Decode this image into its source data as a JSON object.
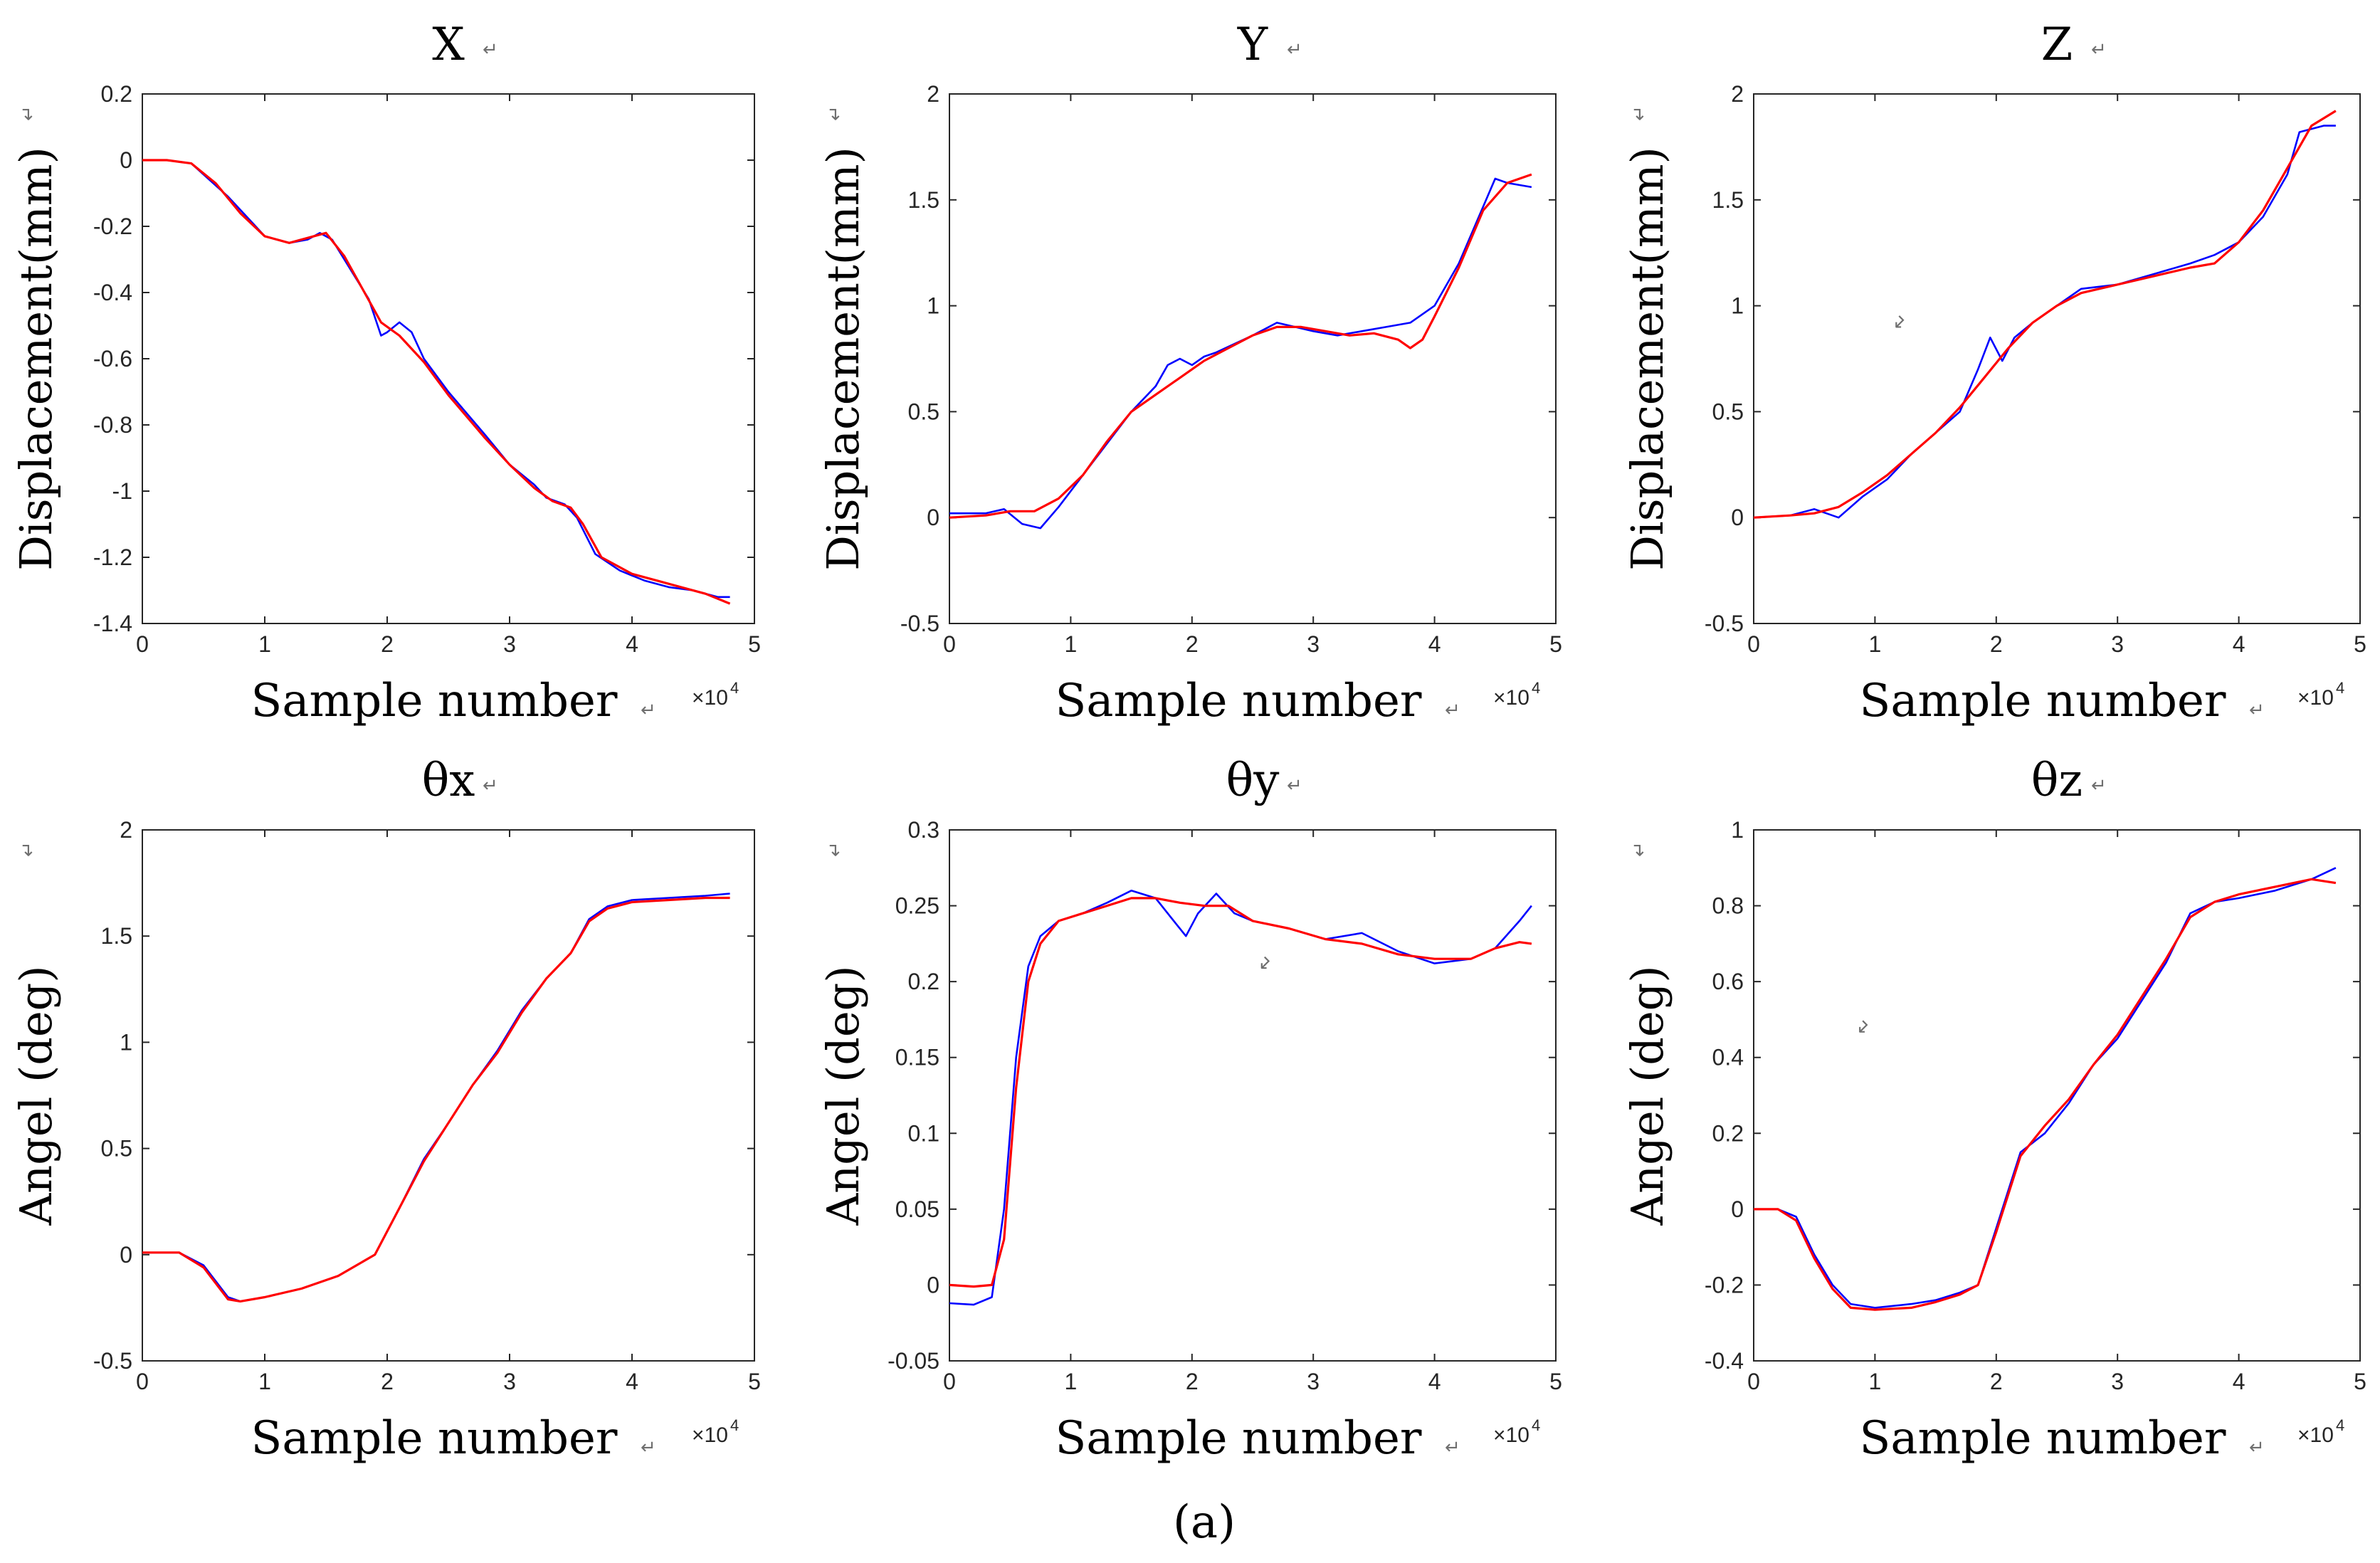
{
  "caption": "(a)",
  "return_mark": "↵",
  "colors": {
    "series1": "#0000ff",
    "series2": "#ff0000",
    "axis": "#262626"
  },
  "chart_data": [
    {
      "type": "line",
      "title": "X",
      "xlabel": "Sample number",
      "ylabel": "Displacement(mm)",
      "x_multiplier": "×10",
      "x_multiplier_exp": "4",
      "xlim": [
        0,
        5
      ],
      "ylim": [
        -1.4,
        0.2
      ],
      "xticks": [
        0,
        1,
        2,
        3,
        4,
        5
      ],
      "yticks": [
        0.2,
        0,
        -0.2,
        -0.4,
        -0.6,
        -0.8,
        -1,
        -1.2,
        -1.4
      ],
      "series": [
        {
          "name": "blue",
          "color": "#0000ff",
          "x": [
            0,
            0.2,
            0.4,
            0.55,
            0.7,
            0.9,
            1.0,
            1.2,
            1.35,
            1.45,
            1.55,
            1.7,
            1.85,
            1.95,
            2.0,
            2.1,
            2.2,
            2.3,
            2.5,
            2.8,
            3.0,
            3.2,
            3.3,
            3.45,
            3.55,
            3.7,
            3.9,
            4.1,
            4.3,
            4.5,
            4.7,
            4.8
          ],
          "y": [
            0,
            0,
            -0.01,
            -0.06,
            -0.11,
            -0.19,
            -0.23,
            -0.25,
            -0.24,
            -0.22,
            -0.24,
            -0.33,
            -0.42,
            -0.53,
            -0.52,
            -0.49,
            -0.52,
            -0.6,
            -0.7,
            -0.83,
            -0.92,
            -0.98,
            -1.02,
            -1.04,
            -1.08,
            -1.19,
            -1.24,
            -1.27,
            -1.29,
            -1.3,
            -1.32,
            -1.32
          ]
        },
        {
          "name": "red",
          "color": "#ff0000",
          "x": [
            0,
            0.2,
            0.4,
            0.6,
            0.8,
            1.0,
            1.2,
            1.4,
            1.5,
            1.65,
            1.8,
            1.95,
            2.1,
            2.3,
            2.5,
            2.8,
            3.0,
            3.2,
            3.35,
            3.5,
            3.6,
            3.75,
            4.0,
            4.2,
            4.4,
            4.6,
            4.8
          ],
          "y": [
            0,
            0,
            -0.01,
            -0.07,
            -0.16,
            -0.23,
            -0.25,
            -0.23,
            -0.22,
            -0.29,
            -0.39,
            -0.49,
            -0.53,
            -0.61,
            -0.71,
            -0.84,
            -0.92,
            -0.99,
            -1.03,
            -1.05,
            -1.1,
            -1.2,
            -1.25,
            -1.27,
            -1.29,
            -1.31,
            -1.34
          ]
        }
      ]
    },
    {
      "type": "line",
      "title": "Y",
      "xlabel": "Sample number",
      "ylabel": "Displacement(mm)",
      "x_multiplier": "×10",
      "x_multiplier_exp": "4",
      "xlim": [
        0,
        5
      ],
      "ylim": [
        -0.5,
        2
      ],
      "xticks": [
        0,
        1,
        2,
        3,
        4,
        5
      ],
      "yticks": [
        2,
        1.5,
        1,
        0.5,
        0,
        -0.5
      ],
      "series": [
        {
          "name": "blue",
          "color": "#0000ff",
          "x": [
            0,
            0.3,
            0.45,
            0.6,
            0.75,
            0.9,
            1.1,
            1.3,
            1.5,
            1.7,
            1.8,
            1.9,
            2.0,
            2.1,
            2.2,
            2.35,
            2.5,
            2.7,
            3.0,
            3.2,
            3.4,
            3.6,
            3.8,
            4.0,
            4.2,
            4.35,
            4.5,
            4.6,
            4.8
          ],
          "y": [
            0.02,
            0.02,
            0.04,
            -0.03,
            -0.05,
            0.05,
            0.2,
            0.35,
            0.5,
            0.62,
            0.72,
            0.75,
            0.72,
            0.76,
            0.78,
            0.82,
            0.86,
            0.92,
            0.88,
            0.86,
            0.88,
            0.9,
            0.92,
            1.0,
            1.2,
            1.4,
            1.6,
            1.58,
            1.56
          ]
        },
        {
          "name": "red",
          "color": "#ff0000",
          "x": [
            0,
            0.3,
            0.5,
            0.7,
            0.9,
            1.1,
            1.3,
            1.5,
            1.7,
            1.9,
            2.1,
            2.3,
            2.5,
            2.7,
            2.9,
            3.1,
            3.3,
            3.5,
            3.7,
            3.8,
            3.9,
            4.0,
            4.2,
            4.4,
            4.6,
            4.8
          ],
          "y": [
            0.0,
            0.01,
            0.03,
            0.03,
            0.09,
            0.2,
            0.36,
            0.5,
            0.58,
            0.66,
            0.74,
            0.8,
            0.86,
            0.9,
            0.9,
            0.88,
            0.86,
            0.87,
            0.84,
            0.8,
            0.84,
            0.95,
            1.18,
            1.45,
            1.58,
            1.62
          ]
        }
      ]
    },
    {
      "type": "line",
      "title": "Z",
      "xlabel": "Sample number",
      "ylabel": "Displacement(mm)",
      "x_multiplier": "×10",
      "x_multiplier_exp": "4",
      "xlim": [
        0,
        5
      ],
      "ylim": [
        -0.5,
        2
      ],
      "xticks": [
        0,
        1,
        2,
        3,
        4,
        5
      ],
      "yticks": [
        2,
        1.5,
        1,
        0.5,
        0,
        -0.5
      ],
      "series": [
        {
          "name": "blue",
          "color": "#0000ff",
          "x": [
            0,
            0.3,
            0.5,
            0.7,
            0.9,
            1.1,
            1.3,
            1.5,
            1.7,
            1.85,
            1.95,
            2.05,
            2.15,
            2.3,
            2.5,
            2.7,
            3.0,
            3.3,
            3.6,
            3.8,
            4.0,
            4.2,
            4.4,
            4.5,
            4.7,
            4.8
          ],
          "y": [
            0.0,
            0.01,
            0.04,
            0.0,
            0.1,
            0.18,
            0.3,
            0.4,
            0.5,
            0.7,
            0.85,
            0.74,
            0.85,
            0.92,
            1.0,
            1.08,
            1.1,
            1.15,
            1.2,
            1.24,
            1.3,
            1.42,
            1.62,
            1.82,
            1.85,
            1.85
          ]
        },
        {
          "name": "red",
          "color": "#ff0000",
          "x": [
            0,
            0.3,
            0.5,
            0.7,
            0.9,
            1.1,
            1.3,
            1.5,
            1.7,
            1.9,
            2.1,
            2.3,
            2.5,
            2.7,
            3.0,
            3.3,
            3.6,
            3.8,
            4.0,
            4.2,
            4.4,
            4.6,
            4.8
          ],
          "y": [
            0.0,
            0.01,
            0.02,
            0.05,
            0.12,
            0.2,
            0.3,
            0.4,
            0.52,
            0.66,
            0.8,
            0.92,
            1.0,
            1.06,
            1.1,
            1.14,
            1.18,
            1.2,
            1.3,
            1.45,
            1.65,
            1.85,
            1.92
          ]
        }
      ]
    },
    {
      "type": "line",
      "title": "θx",
      "xlabel": "Sample number",
      "ylabel": "Angel (deg)",
      "x_multiplier": "×10",
      "x_multiplier_exp": "4",
      "xlim": [
        0,
        5
      ],
      "ylim": [
        -0.5,
        2
      ],
      "xticks": [
        0,
        1,
        2,
        3,
        4,
        5
      ],
      "yticks": [
        2,
        1.5,
        1,
        0.5,
        0,
        -0.5
      ],
      "series": [
        {
          "name": "blue",
          "color": "#0000ff",
          "x": [
            0,
            0.3,
            0.5,
            0.7,
            0.8,
            1.0,
            1.3,
            1.6,
            1.9,
            2.1,
            2.3,
            2.5,
            2.7,
            2.9,
            3.1,
            3.3,
            3.5,
            3.65,
            3.8,
            4.0,
            4.3,
            4.6,
            4.8
          ],
          "y": [
            0.01,
            0.01,
            -0.05,
            -0.2,
            -0.22,
            -0.2,
            -0.16,
            -0.1,
            0.0,
            0.22,
            0.45,
            0.62,
            0.8,
            0.96,
            1.15,
            1.3,
            1.42,
            1.58,
            1.64,
            1.67,
            1.68,
            1.69,
            1.7
          ]
        },
        {
          "name": "red",
          "color": "#ff0000",
          "x": [
            0,
            0.3,
            0.5,
            0.7,
            0.8,
            1.0,
            1.3,
            1.6,
            1.9,
            2.1,
            2.3,
            2.5,
            2.7,
            2.9,
            3.1,
            3.3,
            3.5,
            3.65,
            3.8,
            4.0,
            4.3,
            4.6,
            4.8
          ],
          "y": [
            0.01,
            0.01,
            -0.06,
            -0.21,
            -0.22,
            -0.2,
            -0.16,
            -0.1,
            0.0,
            0.22,
            0.44,
            0.62,
            0.8,
            0.95,
            1.14,
            1.3,
            1.42,
            1.57,
            1.63,
            1.66,
            1.67,
            1.68,
            1.68
          ]
        }
      ]
    },
    {
      "type": "line",
      "title": "θy",
      "xlabel": "Sample number",
      "ylabel": "Angel (deg)",
      "x_multiplier": "×10",
      "x_multiplier_exp": "4",
      "xlim": [
        0,
        5
      ],
      "ylim": [
        -0.05,
        0.3
      ],
      "xticks": [
        0,
        1,
        2,
        3,
        4,
        5
      ],
      "yticks": [
        0.3,
        0.25,
        0.2,
        0.15,
        0.1,
        0.05,
        0,
        -0.05
      ],
      "series": [
        {
          "name": "blue",
          "color": "#0000ff",
          "x": [
            0,
            0.2,
            0.35,
            0.45,
            0.55,
            0.65,
            0.75,
            0.9,
            1.1,
            1.3,
            1.5,
            1.7,
            1.85,
            1.95,
            2.05,
            2.2,
            2.35,
            2.5,
            2.8,
            3.1,
            3.4,
            3.7,
            4.0,
            4.3,
            4.5,
            4.7,
            4.8
          ],
          "y": [
            -0.012,
            -0.013,
            -0.008,
            0.05,
            0.15,
            0.21,
            0.23,
            0.24,
            0.245,
            0.252,
            0.26,
            0.255,
            0.24,
            0.23,
            0.245,
            0.258,
            0.245,
            0.24,
            0.235,
            0.228,
            0.232,
            0.22,
            0.212,
            0.215,
            0.222,
            0.24,
            0.25
          ]
        },
        {
          "name": "red",
          "color": "#ff0000",
          "x": [
            0,
            0.2,
            0.35,
            0.45,
            0.55,
            0.65,
            0.75,
            0.9,
            1.1,
            1.3,
            1.5,
            1.7,
            1.9,
            2.1,
            2.3,
            2.5,
            2.8,
            3.1,
            3.4,
            3.7,
            4.0,
            4.3,
            4.5,
            4.7,
            4.8
          ],
          "y": [
            0.0,
            -0.001,
            0.0,
            0.03,
            0.13,
            0.2,
            0.225,
            0.24,
            0.245,
            0.25,
            0.255,
            0.255,
            0.252,
            0.25,
            0.25,
            0.24,
            0.235,
            0.228,
            0.225,
            0.218,
            0.215,
            0.215,
            0.222,
            0.226,
            0.225
          ]
        }
      ]
    },
    {
      "type": "line",
      "title": "θz",
      "xlabel": "Sample number",
      "ylabel": "Angel (deg)",
      "x_multiplier": "×10",
      "x_multiplier_exp": "4",
      "xlim": [
        0,
        5
      ],
      "ylim": [
        -0.4,
        1
      ],
      "xticks": [
        0,
        1,
        2,
        3,
        4,
        5
      ],
      "yticks": [
        1,
        0.8,
        0.6,
        0.4,
        0.2,
        0,
        -0.2,
        -0.4
      ],
      "series": [
        {
          "name": "blue",
          "color": "#0000ff",
          "x": [
            0,
            0.2,
            0.35,
            0.5,
            0.65,
            0.8,
            1.0,
            1.3,
            1.5,
            1.7,
            1.85,
            2.0,
            2.2,
            2.4,
            2.6,
            2.8,
            3.0,
            3.2,
            3.4,
            3.6,
            3.8,
            4.0,
            4.3,
            4.6,
            4.8
          ],
          "y": [
            0.0,
            0.0,
            -0.02,
            -0.12,
            -0.2,
            -0.25,
            -0.26,
            -0.25,
            -0.24,
            -0.22,
            -0.2,
            -0.05,
            0.15,
            0.2,
            0.28,
            0.38,
            0.45,
            0.55,
            0.65,
            0.78,
            0.81,
            0.82,
            0.84,
            0.87,
            0.9
          ]
        },
        {
          "name": "red",
          "color": "#ff0000",
          "x": [
            0,
            0.2,
            0.35,
            0.5,
            0.65,
            0.8,
            1.0,
            1.3,
            1.5,
            1.7,
            1.85,
            2.0,
            2.2,
            2.4,
            2.6,
            2.8,
            3.0,
            3.2,
            3.4,
            3.6,
            3.8,
            4.0,
            4.3,
            4.6,
            4.8
          ],
          "y": [
            0.0,
            0.0,
            -0.03,
            -0.13,
            -0.21,
            -0.26,
            -0.265,
            -0.26,
            -0.245,
            -0.225,
            -0.2,
            -0.06,
            0.14,
            0.22,
            0.29,
            0.38,
            0.46,
            0.56,
            0.66,
            0.77,
            0.81,
            0.83,
            0.85,
            0.87,
            0.86
          ]
        }
      ]
    }
  ]
}
